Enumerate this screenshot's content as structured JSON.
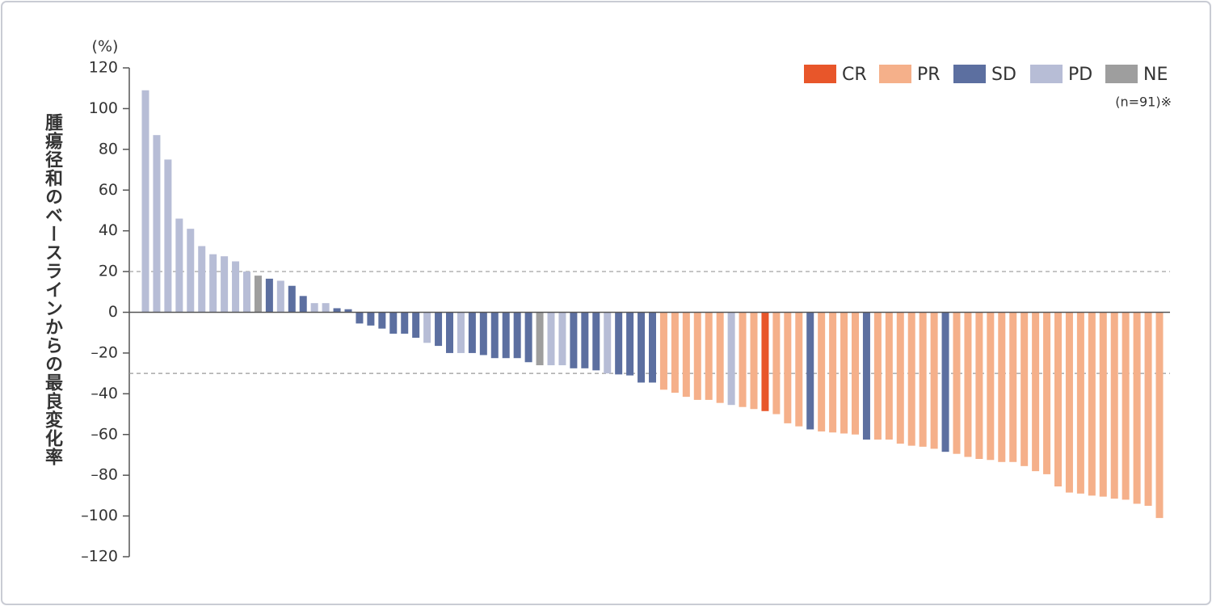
{
  "chart_data": {
    "type": "bar",
    "y_label": "腫瘍径和のベースラインからの最良変化率",
    "y_unit": "(%)",
    "note": "(n=91)※",
    "ylim": [
      -120,
      120
    ],
    "yticks": [
      {
        "value": -120,
        "label": "–120"
      },
      {
        "value": -100,
        "label": "–100"
      },
      {
        "value": -80,
        "label": "–80"
      },
      {
        "value": -60,
        "label": "–60"
      },
      {
        "value": -40,
        "label": "–40"
      },
      {
        "value": -20,
        "label": "–20"
      },
      0,
      20,
      40,
      60,
      80,
      100,
      120
    ],
    "reference_lines": [
      20,
      -30
    ],
    "series": [
      {
        "name": "CR",
        "color": "#e8562a",
        "values": [
          null,
          null,
          null,
          null,
          null,
          null,
          null,
          null,
          null,
          null,
          null,
          null,
          null,
          null,
          null,
          null,
          null,
          null,
          null,
          null,
          null,
          null,
          null,
          null,
          null,
          null,
          null,
          null,
          null,
          null,
          null,
          null,
          null,
          null,
          null,
          null,
          null,
          null,
          null,
          null,
          null,
          null,
          null,
          null,
          null,
          null,
          null,
          null,
          null,
          null,
          null,
          null,
          null,
          null,
          null,
          -48.5,
          null,
          null,
          null,
          null,
          null,
          null,
          null,
          null,
          null,
          null,
          null,
          null,
          null,
          null,
          null,
          null,
          null,
          null,
          null,
          null,
          null,
          null,
          null,
          null,
          null,
          null,
          null,
          null,
          null,
          null,
          null,
          null,
          null,
          null,
          null
        ]
      },
      {
        "name": "PR",
        "color": "#f5b08a",
        "values": [
          null,
          null,
          null,
          null,
          null,
          null,
          null,
          null,
          null,
          null,
          null,
          null,
          null,
          null,
          null,
          null,
          null,
          null,
          null,
          null,
          null,
          null,
          null,
          null,
          null,
          null,
          null,
          null,
          null,
          null,
          null,
          null,
          null,
          null,
          null,
          null,
          null,
          null,
          null,
          null,
          null,
          null,
          null,
          null,
          null,
          null,
          -38,
          -39.5,
          -41.5,
          -43,
          -43,
          -44.5,
          null,
          -46.5,
          -47.5,
          null,
          -50,
          -54.5,
          -56,
          null,
          -58.5,
          -59,
          -59.5,
          -60,
          null,
          -62.5,
          -62.5,
          -64.5,
          -65.5,
          -66,
          -67,
          null,
          -69.5,
          -71,
          -72,
          -72.5,
          -73.5,
          -73.5,
          -75.5,
          -78,
          -79.5,
          -85.5,
          -88.5,
          -89,
          -90,
          -90.5,
          -91.5,
          -92,
          -94,
          -95,
          -101
        ]
      },
      {
        "name": "SD",
        "color": "#5c6fa0",
        "values": [
          null,
          null,
          null,
          null,
          null,
          null,
          null,
          null,
          null,
          null,
          null,
          16.5,
          null,
          13,
          8,
          null,
          null,
          2,
          1.5,
          -5.5,
          -6.5,
          -8,
          -10.5,
          -10.5,
          -12.5,
          null,
          -16.5,
          -20,
          null,
          -20,
          -21,
          -22.5,
          -22.5,
          -22.5,
          -24.5,
          null,
          null,
          null,
          -27.5,
          -27.5,
          -28.5,
          null,
          -30.5,
          -31,
          -34.5,
          -34.5,
          null,
          null,
          null,
          null,
          null,
          null,
          null,
          null,
          null,
          null,
          null,
          null,
          null,
          -57.5,
          null,
          null,
          null,
          null,
          -62.5,
          null,
          null,
          null,
          null,
          null,
          null,
          -68.5,
          null,
          null,
          null,
          null,
          null,
          null,
          null,
          null,
          null,
          null,
          null,
          null,
          null,
          null,
          null,
          null,
          null,
          null,
          null
        ]
      },
      {
        "name": "PD",
        "color": "#b7bdd6",
        "values": [
          109,
          87,
          75,
          46,
          41,
          32.5,
          28.5,
          27.5,
          25,
          20,
          null,
          null,
          15.5,
          null,
          null,
          4.5,
          4.5,
          null,
          null,
          null,
          null,
          null,
          null,
          null,
          null,
          -15,
          null,
          null,
          -20,
          null,
          null,
          null,
          null,
          null,
          null,
          null,
          -26,
          -26,
          null,
          null,
          null,
          -30,
          null,
          null,
          null,
          null,
          null,
          null,
          null,
          null,
          null,
          null,
          -45.5,
          null,
          null,
          null,
          null,
          null,
          null,
          null,
          null,
          null,
          null,
          null,
          null,
          null,
          null,
          null,
          null,
          null,
          null,
          null,
          null,
          null,
          null,
          null,
          null,
          null,
          null,
          null,
          null,
          null,
          null,
          null,
          null,
          null,
          null,
          null,
          null,
          null,
          null
        ]
      },
      {
        "name": "NE",
        "color": "#9e9e9e",
        "values": [
          null,
          null,
          null,
          null,
          null,
          null,
          null,
          null,
          null,
          null,
          18,
          null,
          null,
          null,
          null,
          null,
          null,
          null,
          null,
          null,
          null,
          null,
          null,
          null,
          null,
          null,
          null,
          null,
          null,
          null,
          null,
          null,
          null,
          null,
          null,
          -26,
          null,
          null,
          null,
          null,
          null,
          null,
          null,
          null,
          null,
          null,
          null,
          null,
          null,
          null,
          null,
          null,
          null,
          null,
          null,
          null,
          null,
          null,
          null,
          null,
          null,
          null,
          null,
          null,
          null,
          null,
          null,
          null,
          null,
          null,
          null,
          null,
          null,
          null,
          null,
          null,
          null,
          null,
          null,
          null,
          null,
          null,
          null,
          null,
          null,
          null,
          null,
          null,
          null,
          null,
          null
        ]
      }
    ]
  }
}
